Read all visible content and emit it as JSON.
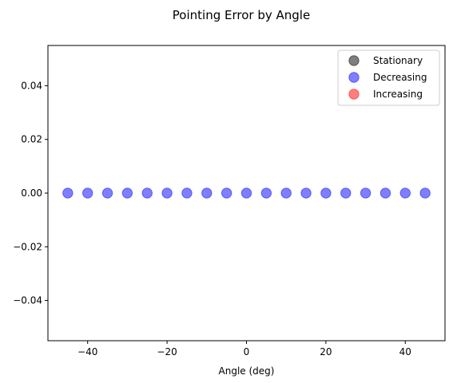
{
  "chart_data": {
    "type": "scatter",
    "title": "Pointing Error by Angle",
    "xlabel": "Angle (deg)",
    "ylabel": "",
    "xlim": [
      -50,
      50
    ],
    "ylim": [
      -0.055,
      0.055
    ],
    "xticks": [
      -40,
      -20,
      0,
      20,
      40
    ],
    "xtick_labels": [
      "−40",
      "−20",
      "0",
      "20",
      "40"
    ],
    "yticks": [
      -0.04,
      -0.02,
      0.0,
      0.02,
      0.04
    ],
    "ytick_labels": [
      "−0.04",
      "−0.02",
      "0.00",
      "0.02",
      "0.04"
    ],
    "grid": false,
    "legend_position": "top-right",
    "series": [
      {
        "name": "Stationary",
        "color": "#000000",
        "x": [],
        "y": []
      },
      {
        "name": "Decreasing",
        "color": "#0000ff",
        "x": [
          -45,
          -40,
          -35,
          -30,
          -25,
          -20,
          -15,
          -10,
          -5,
          0,
          5,
          10,
          15,
          20,
          25,
          30,
          35,
          40,
          45
        ],
        "y": [
          0,
          0,
          0,
          0,
          0,
          0,
          0,
          0,
          0,
          0,
          0,
          0,
          0,
          0,
          0,
          0,
          0,
          0,
          0
        ]
      },
      {
        "name": "Increasing",
        "color": "#ff0000",
        "x": [],
        "y": []
      }
    ]
  }
}
